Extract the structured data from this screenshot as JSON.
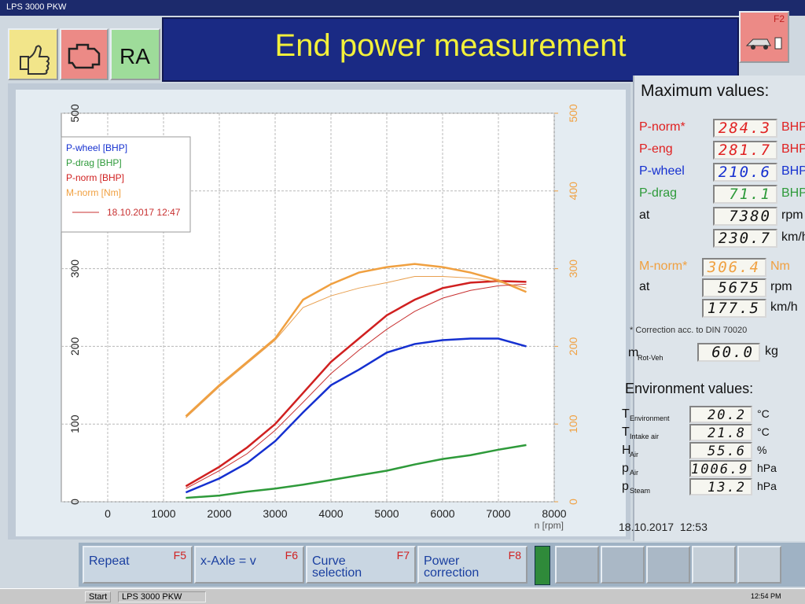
{
  "window_title": "LPS 3000 PKW",
  "header": {
    "buttons": [
      "RA"
    ],
    "title": "End power measurement",
    "function_key": "F2"
  },
  "chart_data": {
    "type": "line",
    "xlabel": "n [rpm]",
    "x": [
      1400,
      2000,
      2500,
      3000,
      3500,
      4000,
      4500,
      5000,
      5500,
      6000,
      6500,
      7000,
      7500
    ],
    "xlim": [
      0,
      8000
    ],
    "xticks": [
      0,
      1000,
      2000,
      3000,
      4000,
      5000,
      6000,
      7000,
      8000
    ],
    "ylim": [
      0,
      500
    ],
    "yticks": [
      0,
      100,
      200,
      300,
      400,
      500
    ],
    "y2lim": [
      0,
      500
    ],
    "y2ticks": [
      0,
      100,
      200,
      300,
      400,
      500
    ],
    "y2color": "#f0a040",
    "grid": true,
    "legend": "upper left",
    "series": [
      {
        "name": "P-wheel [BHP]",
        "color": "#1530d0",
        "line_width": 2.5,
        "values": [
          12,
          30,
          50,
          78,
          115,
          150,
          170,
          192,
          203,
          208,
          210,
          210,
          200
        ]
      },
      {
        "name": "P-drag [BHP]",
        "color": "#2e9a3a",
        "line_width": 2.5,
        "values": [
          5,
          8,
          13,
          17,
          22,
          28,
          34,
          40,
          48,
          55,
          60,
          67,
          73
        ]
      },
      {
        "name": "P-norm [BHP]",
        "color": "#d02020",
        "line_width": 2.5,
        "values": [
          20,
          45,
          70,
          100,
          140,
          180,
          210,
          240,
          260,
          275,
          282,
          284,
          283
        ]
      },
      {
        "name": "M-norm [Nm]",
        "color": "#f0a040",
        "axis": "y2",
        "line_width": 2.5,
        "values": [
          110,
          150,
          180,
          210,
          260,
          280,
          295,
          302,
          306,
          302,
          295,
          285,
          270
        ]
      },
      {
        "name": "18.10.2017 12:47",
        "color": "#c83030",
        "line_width": 1,
        "values": [
          17,
          40,
          62,
          92,
          128,
          165,
          195,
          222,
          245,
          262,
          272,
          278,
          280
        ]
      },
      {
        "color": "#e8a050",
        "axis": "y2",
        "line_width": 1,
        "values": [
          108,
          148,
          178,
          208,
          250,
          265,
          275,
          282,
          290,
          290,
          288,
          283,
          275
        ]
      }
    ]
  },
  "maximum_values": {
    "title": "Maximum values:",
    "rows": [
      {
        "label": "P-norm*",
        "value": "284.3",
        "unit": "BHP",
        "color": "#e02020"
      },
      {
        "label": "P-eng",
        "value": "281.7",
        "unit": "BHP",
        "color": "#e02020"
      },
      {
        "label": "P-wheel",
        "value": "210.6",
        "unit": "BHP",
        "color": "#1530d0"
      },
      {
        "label": "P-drag",
        "value": "71.1",
        "unit": "BHP",
        "color": "#2e9a3a"
      },
      {
        "label": "at",
        "value": "7380",
        "unit": "rpm",
        "color": "#111111"
      },
      {
        "value": "230.7",
        "unit": "km/h",
        "color": "#111111"
      }
    ],
    "torque_rows": [
      {
        "label": "M-norm*",
        "value": "306.4",
        "unit": "Nm",
        "color": "#f0a040"
      },
      {
        "label": "at",
        "value": "5675",
        "unit": "rpm",
        "color": "#111111"
      },
      {
        "value": "177.5",
        "unit": "km/h",
        "color": "#111111"
      }
    ],
    "note": "* Correction acc. to DIN 70020",
    "mass": {
      "label": "m",
      "subscript": "Rot-Veh",
      "value": "60.0",
      "unit": "kg"
    }
  },
  "environment": {
    "title": "Environment values:",
    "rows": [
      {
        "label": "T",
        "subscript": "Environment",
        "value": "20.2",
        "unit": "°C"
      },
      {
        "label": "T",
        "subscript": "Intake air",
        "value": "21.8",
        "unit": "°C"
      },
      {
        "label": "H",
        "subscript": "Air",
        "value": "55.6",
        "unit": "%"
      },
      {
        "label": "p",
        "subscript": "Air",
        "value": "1006.9",
        "unit": "hPa"
      },
      {
        "label": "p",
        "subscript": "Steam",
        "value": "13.2",
        "unit": "hPa"
      }
    ]
  },
  "timestamp": "18.10.2017  12:53",
  "footer": {
    "buttons": [
      {
        "label": "Repeat",
        "key": "F5"
      },
      {
        "label": "x-Axle = v",
        "key": "F6"
      },
      {
        "label": "Curve selection",
        "key": "F7"
      },
      {
        "label": "Power correction",
        "key": "F8"
      }
    ]
  },
  "taskbar": {
    "start": "Start",
    "task": "LPS 3000 PKW",
    "clock": "12:54 PM"
  }
}
